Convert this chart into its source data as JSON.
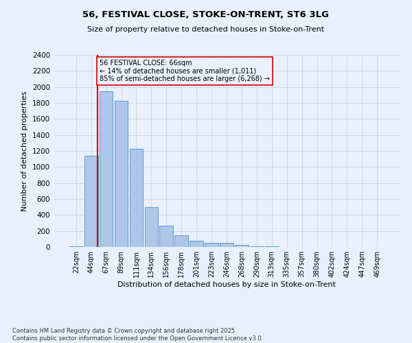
{
  "title1": "56, FESTIVAL CLOSE, STOKE-ON-TRENT, ST6 3LG",
  "title2": "Size of property relative to detached houses in Stoke-on-Trent",
  "xlabel": "Distribution of detached houses by size in Stoke-on-Trent",
  "ylabel": "Number of detached properties",
  "annotation_line1": "56 FESTIVAL CLOSE: 66sqm",
  "annotation_line2": "← 14% of detached houses are smaller (1,011)",
  "annotation_line3": "85% of semi-detached houses are larger (6,268) →",
  "footer1": "Contains HM Land Registry data © Crown copyright and database right 2025.",
  "footer2": "Contains public sector information licensed under the Open Government Licence v3.0.",
  "categories": [
    "22sqm",
    "44sqm",
    "67sqm",
    "89sqm",
    "111sqm",
    "134sqm",
    "156sqm",
    "178sqm",
    "201sqm",
    "223sqm",
    "246sqm",
    "268sqm",
    "290sqm",
    "313sqm",
    "335sqm",
    "357sqm",
    "380sqm",
    "402sqm",
    "424sqm",
    "447sqm",
    "469sqm"
  ],
  "values": [
    10,
    1140,
    1950,
    1830,
    1230,
    500,
    265,
    145,
    80,
    50,
    50,
    25,
    10,
    5,
    2,
    1,
    1,
    0,
    0,
    0,
    0
  ],
  "bar_color": "#aec6e8",
  "bar_edge_color": "#5b9bd5",
  "vline_color": "#cc0000",
  "ylim": [
    0,
    2400
  ],
  "yticks": [
    0,
    200,
    400,
    600,
    800,
    1000,
    1200,
    1400,
    1600,
    1800,
    2000,
    2200,
    2400
  ],
  "grid_color": "#d0d8e8",
  "bg_color": "#eaf0fb",
  "annotation_box_color": "#cc0000",
  "vline_pos": 1.42
}
